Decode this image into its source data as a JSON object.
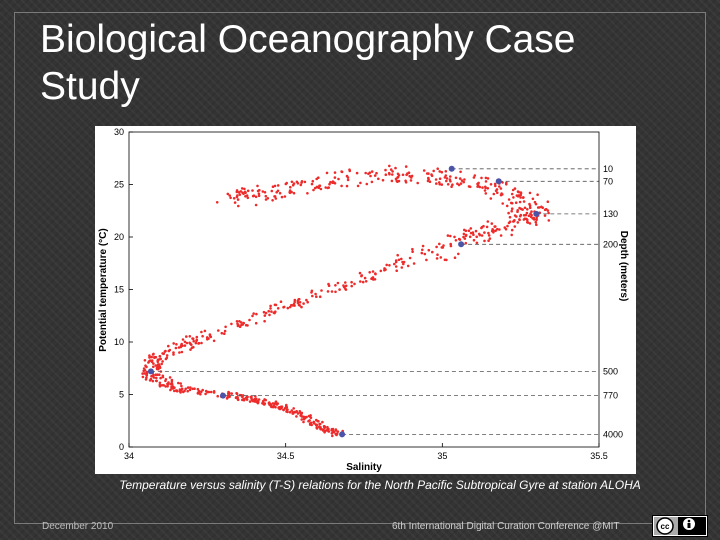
{
  "slide": {
    "title": "Biological Oceanography Case Study",
    "caption": "Temperature versus salinity (T-S) relations for the North Pacific Subtropical Gyre at station ALOHA",
    "footer_left": "December 2010",
    "footer_center": "6th International Digital Curation Conference  @MIT",
    "license_badge_icon": "creative-commons-by-icon"
  },
  "chart_data": {
    "type": "scatter",
    "title": "",
    "xlabel": "Salinity",
    "ylabel": "Potential temperature (°C)",
    "right_axis_label": "Depth (meters)",
    "xlim": [
      34,
      35.5
    ],
    "ylim": [
      0,
      30
    ],
    "x_ticks": [
      "34",
      "34.5",
      "35",
      "35.5"
    ],
    "y_ticks": [
      "0",
      "5",
      "10",
      "15",
      "20",
      "25",
      "30"
    ],
    "grid": false,
    "point_color": "#ee2b2b",
    "marker_color": "#4a55a8",
    "tsCurve": [
      {
        "x": 34.67,
        "y": 1.2
      },
      {
        "x": 34.6,
        "y": 2.2
      },
      {
        "x": 34.52,
        "y": 3.5
      },
      {
        "x": 34.42,
        "y": 4.4
      },
      {
        "x": 34.33,
        "y": 4.9
      },
      {
        "x": 34.15,
        "y": 5.6
      },
      {
        "x": 34.07,
        "y": 6.8
      },
      {
        "x": 34.08,
        "y": 8.4
      },
      {
        "x": 34.2,
        "y": 10.0
      },
      {
        "x": 34.42,
        "y": 12.5
      },
      {
        "x": 34.65,
        "y": 15.0
      },
      {
        "x": 34.88,
        "y": 17.5
      },
      {
        "x": 35.1,
        "y": 20.0
      },
      {
        "x": 35.25,
        "y": 21.5
      },
      {
        "x": 35.3,
        "y": 22.5
      },
      {
        "x": 35.2,
        "y": 24.3
      },
      {
        "x": 35.05,
        "y": 25.5
      },
      {
        "x": 34.85,
        "y": 26.0
      },
      {
        "x": 34.65,
        "y": 25.4
      },
      {
        "x": 34.45,
        "y": 24.2
      },
      {
        "x": 34.3,
        "y": 23.5
      }
    ],
    "depth_markers": [
      {
        "depth": "10",
        "salinity": 35.03,
        "temperature": 26.5
      },
      {
        "depth": "70",
        "salinity": 35.18,
        "temperature": 25.3
      },
      {
        "depth": "130",
        "salinity": 35.3,
        "temperature": 22.2
      },
      {
        "depth": "200",
        "salinity": 35.06,
        "temperature": 19.3
      },
      {
        "depth": "500",
        "salinity": 34.07,
        "temperature": 7.2
      },
      {
        "depth": "770",
        "salinity": 34.3,
        "temperature": 4.9
      },
      {
        "depth": "4000",
        "salinity": 34.68,
        "temperature": 1.2
      }
    ]
  }
}
